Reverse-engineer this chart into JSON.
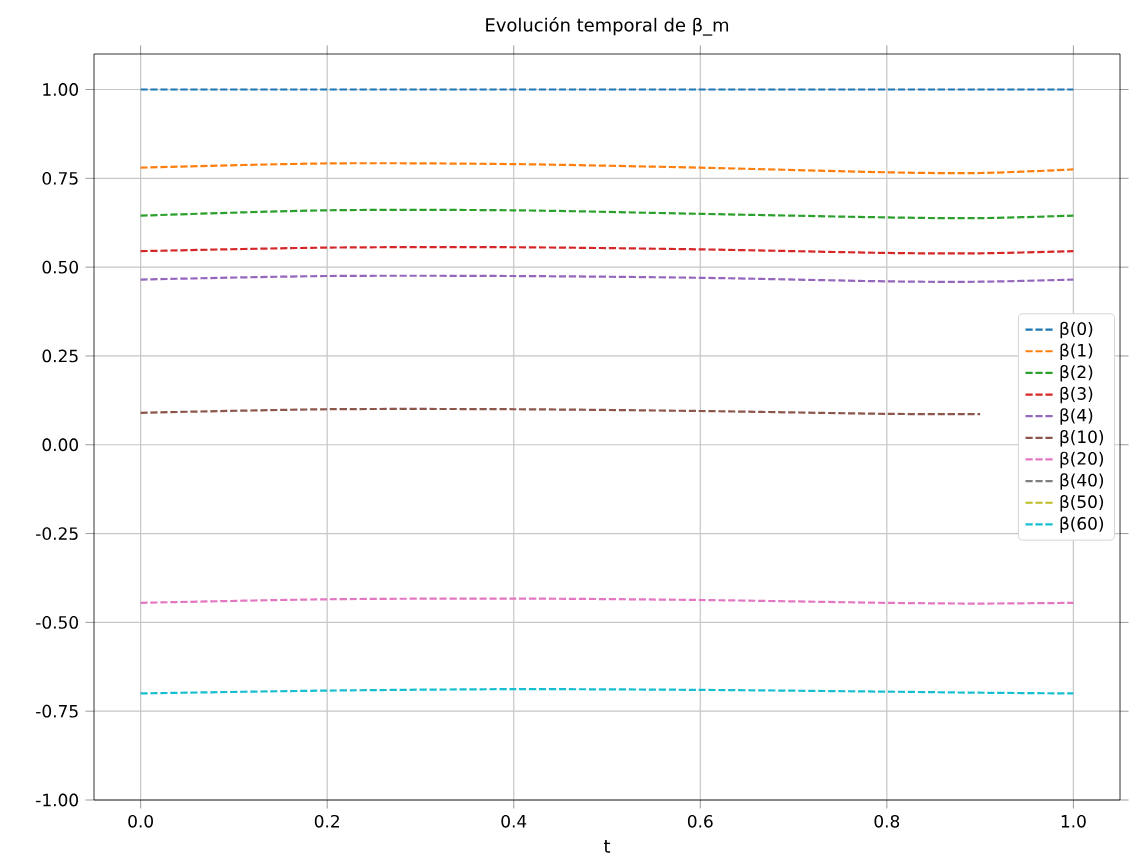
{
  "chart_data": {
    "type": "line",
    "title": "Evolución temporal de  β_m",
    "xlabel": "t",
    "x": [
      0,
      0.2,
      0.4,
      0.6,
      0.8,
      0.9,
      1.0
    ],
    "series": [
      {
        "name": "β(0)",
        "color": "#1f77b4",
        "values": [
          1.0,
          1.0,
          1.0,
          1.0,
          1.0,
          1.0,
          1.0
        ]
      },
      {
        "name": "β(1)",
        "color": "#ff7f0e",
        "values": [
          0.78,
          0.792,
          0.79,
          0.78,
          0.767,
          0.765,
          0.775
        ]
      },
      {
        "name": "β(2)",
        "color": "#2ca02c",
        "values": [
          0.645,
          0.66,
          0.66,
          0.65,
          0.64,
          0.638,
          0.645
        ]
      },
      {
        "name": "β(3)",
        "color": "#d62728",
        "values": [
          0.545,
          0.555,
          0.556,
          0.55,
          0.54,
          0.539,
          0.545
        ]
      },
      {
        "name": "β(4)",
        "color": "#9467bd",
        "values": [
          0.465,
          0.475,
          0.475,
          0.47,
          0.46,
          0.459,
          0.465
        ]
      },
      {
        "name": "β(10)",
        "color": "#8c564b",
        "values": [
          0.09,
          0.1,
          0.1,
          0.095,
          0.087,
          0.086,
          null
        ]
      },
      {
        "name": "β(20)",
        "color": "#e377c2",
        "values": [
          -0.445,
          -0.435,
          -0.433,
          -0.437,
          -0.445,
          -0.447,
          -0.445
        ]
      },
      {
        "name": "β(40)",
        "color": "#7f7f7f",
        "values": [
          null,
          null,
          null,
          null,
          null,
          null,
          null
        ]
      },
      {
        "name": "β(50)",
        "color": "#bcbd22",
        "values": [
          null,
          null,
          null,
          null,
          null,
          null,
          null
        ]
      },
      {
        "name": "β(60)",
        "color": "#17becf",
        "values": [
          -0.7,
          -0.692,
          -0.688,
          -0.69,
          -0.695,
          -0.698,
          -0.7
        ]
      }
    ],
    "xlim": [
      -0.05,
      1.05
    ],
    "ylim": [
      -1.0,
      1.1
    ],
    "xticks": [
      {
        "value": 0,
        "label": "0.0"
      },
      {
        "value": 0.2,
        "label": "0.2"
      },
      {
        "value": 0.4,
        "label": "0.4"
      },
      {
        "value": 0.6,
        "label": "0.6"
      },
      {
        "value": 0.8,
        "label": "0.8"
      },
      {
        "value": 1.0,
        "label": "1.0"
      }
    ],
    "yticks": [
      {
        "value": -1.0,
        "label": "-1.00"
      },
      {
        "value": -0.75,
        "label": "-0.75"
      },
      {
        "value": -0.5,
        "label": "-0.50"
      },
      {
        "value": -0.25,
        "label": "-0.25"
      },
      {
        "value": 0,
        "label": "0.00"
      },
      {
        "value": 0.25,
        "label": "0.25"
      },
      {
        "value": 0.5,
        "label": "0.50"
      },
      {
        "value": 0.75,
        "label": "0.75"
      },
      {
        "value": 1.0,
        "label": "1.00"
      }
    ],
    "grid": true,
    "legend": "right",
    "line_style": "dashed"
  }
}
